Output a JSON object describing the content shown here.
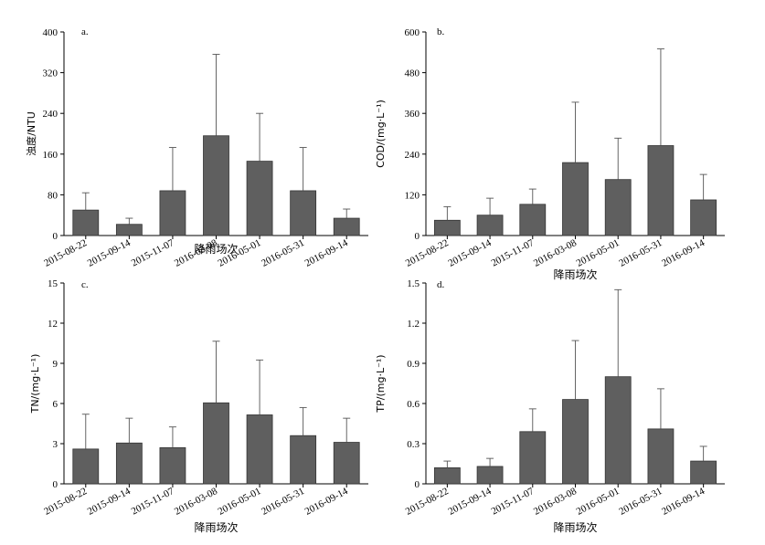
{
  "chart_data": [
    {
      "type": "bar",
      "panel_label": "a.",
      "title": "",
      "xlabel": "降雨场次",
      "ylabel": "浊度/NTU",
      "categories": [
        "2015-08-22",
        "2015-09-14",
        "2015-11-07",
        "2016-03-08",
        "2016-05-01",
        "2016-05-31",
        "2016-09-14"
      ],
      "values": [
        50,
        22,
        88,
        196,
        146,
        88,
        34
      ],
      "errors": [
        34,
        12,
        85,
        160,
        94,
        85,
        18
      ],
      "ylim": [
        0,
        400
      ],
      "yticks": [
        0,
        80,
        160,
        240,
        320,
        400
      ],
      "ytick_labels": [
        "0",
        "80",
        "160",
        "240",
        "320",
        "400"
      ],
      "bar_color": "#5f5f5f"
    },
    {
      "type": "bar",
      "panel_label": "b.",
      "title": "",
      "xlabel": "降雨场次",
      "ylabel": "COD/(mg·L⁻¹)",
      "categories": [
        "2015-08-22",
        "2015-09-14",
        "2015-11-07",
        "2016-03-08",
        "2016-05-01",
        "2016-05-31",
        "2016-09-14"
      ],
      "values": [
        45,
        60,
        92,
        215,
        165,
        265,
        105
      ],
      "errors": [
        40,
        50,
        45,
        178,
        122,
        285,
        75
      ],
      "ylim": [
        0,
        600
      ],
      "yticks": [
        0,
        120,
        240,
        360,
        480,
        600
      ],
      "ytick_labels": [
        "0",
        "120",
        "240",
        "360",
        "480",
        "600"
      ],
      "bar_color": "#5f5f5f"
    },
    {
      "type": "bar",
      "panel_label": "c.",
      "title": "",
      "xlabel": "降雨场次",
      "ylabel": "TN/(mg·L⁻¹)",
      "categories": [
        "2015-08-22",
        "2015-09-14",
        "2015-11-07",
        "2016-03-08",
        "2016-05-01",
        "2016-05-31",
        "2016-09-14"
      ],
      "values": [
        2.6,
        3.05,
        2.7,
        6.05,
        5.15,
        3.6,
        3.1
      ],
      "errors": [
        2.6,
        1.85,
        1.55,
        4.6,
        4.1,
        2.1,
        1.8
      ],
      "ylim": [
        0,
        15
      ],
      "yticks": [
        0,
        3,
        6,
        9,
        12,
        15
      ],
      "ytick_labels": [
        "0",
        "3",
        "6",
        "9",
        "12",
        "15"
      ],
      "bar_color": "#5f5f5f"
    },
    {
      "type": "bar",
      "panel_label": "d.",
      "title": "",
      "xlabel": "降雨场次",
      "ylabel": "TP/(mg·L⁻¹)",
      "categories": [
        "2015-08-22",
        "2015-09-14",
        "2015-11-07",
        "2016-03-08",
        "2016-05-01",
        "2016-05-31",
        "2016-09-14"
      ],
      "values": [
        0.12,
        0.13,
        0.39,
        0.63,
        0.8,
        0.41,
        0.17
      ],
      "errors": [
        0.05,
        0.06,
        0.17,
        0.44,
        0.65,
        0.3,
        0.11
      ],
      "ylim": [
        0,
        1.5
      ],
      "yticks": [
        0,
        0.3,
        0.6,
        0.9,
        1.2,
        1.5
      ],
      "ytick_labels": [
        "0",
        "0.3",
        "0.6",
        "0.9",
        "1.2",
        "1.5"
      ],
      "bar_color": "#5f5f5f"
    }
  ]
}
